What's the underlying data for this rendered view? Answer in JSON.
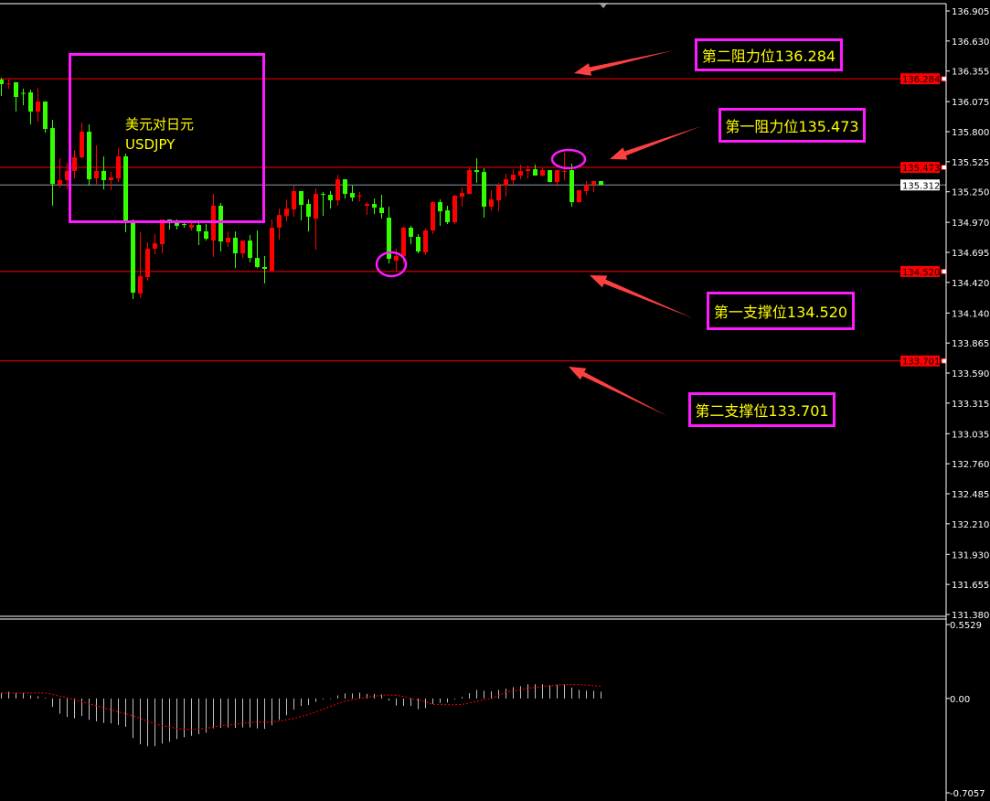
{
  "chart_data": [
    {
      "type": "candlestick",
      "title": "美元对日元",
      "subtitle": "USDJPY",
      "price_axis": {
        "range": [
          131.38,
          136.905
        ],
        "tick_labels": [
          "136.905",
          "136.630",
          "136.355",
          "136.075",
          "135.800",
          "135.525",
          "135.250",
          "134.970",
          "134.695",
          "134.420",
          "134.140",
          "133.865",
          "133.590",
          "133.315",
          "133.035",
          "132.760",
          "132.485",
          "132.210",
          "131.930",
          "131.655",
          "131.380"
        ]
      },
      "colors": {
        "up": "#ff0000",
        "down": "#33ff00",
        "level_line": "#ff0000",
        "current_price_line": "#8a9aa8"
      },
      "current_price": "135.312",
      "levels": [
        {
          "price": "136.284",
          "label": "第二阻力位136.284"
        },
        {
          "price": "135.473",
          "label": "第一阻力位135.473"
        },
        {
          "price": "134.520",
          "label": "第一支撑位134.520"
        },
        {
          "price": "133.701",
          "label": "第二支撑位133.701"
        }
      ],
      "ohlc": [
        [
          136.277,
          136.293,
          136.126,
          136.235
        ],
        [
          136.235,
          136.277,
          136.193,
          136.24
        ],
        [
          136.252,
          136.252,
          135.984,
          136.118
        ],
        [
          136.155,
          136.193,
          136.042,
          136.151
        ],
        [
          136.16,
          136.185,
          135.867,
          135.984
        ],
        [
          135.984,
          136.201,
          135.892,
          136.076
        ],
        [
          136.076,
          136.076,
          135.791,
          135.825
        ],
        [
          135.833,
          135.908,
          135.122,
          135.322
        ],
        [
          135.314,
          135.557,
          135.289,
          135.356
        ],
        [
          135.356,
          135.515,
          135.272,
          135.44
        ],
        [
          135.44,
          135.632,
          135.373,
          135.565
        ],
        [
          135.565,
          135.883,
          135.557,
          135.8
        ],
        [
          135.8,
          135.867,
          135.306,
          135.364
        ],
        [
          135.373,
          135.674,
          135.322,
          135.44
        ],
        [
          135.44,
          135.574,
          135.272,
          135.356
        ],
        [
          135.356,
          135.431,
          135.264,
          135.381
        ],
        [
          135.373,
          135.649,
          135.339,
          135.574
        ],
        [
          135.574,
          135.599,
          134.879,
          134.979
        ],
        [
          134.979,
          134.996,
          134.268,
          134.326
        ],
        [
          134.318,
          134.879,
          134.276,
          134.477
        ],
        [
          134.469,
          134.787,
          134.435,
          134.728
        ],
        [
          134.728,
          134.862,
          134.678,
          134.778
        ],
        [
          134.77,
          134.996,
          134.686,
          134.996
        ],
        [
          134.996,
          134.996,
          134.904,
          134.962
        ],
        [
          134.979,
          134.996,
          134.904,
          134.938
        ],
        [
          134.954,
          134.988,
          134.921,
          134.95
        ],
        [
          134.921,
          134.971,
          134.896,
          134.946
        ],
        [
          134.946,
          134.971,
          134.762,
          134.887
        ],
        [
          134.887,
          134.954,
          134.803,
          134.82
        ],
        [
          134.803,
          135.23,
          134.653,
          135.122
        ],
        [
          135.122,
          135.147,
          134.703,
          134.795
        ],
        [
          134.787,
          134.887,
          134.745,
          134.829
        ],
        [
          134.829,
          134.887,
          134.552,
          134.686
        ],
        [
          134.686,
          134.803,
          134.644,
          134.803
        ],
        [
          134.803,
          134.854,
          134.603,
          134.644
        ],
        [
          134.644,
          134.896,
          134.552,
          134.561
        ],
        [
          134.561,
          134.661,
          134.41,
          134.544
        ],
        [
          134.527,
          134.996,
          134.527,
          134.921
        ],
        [
          134.921,
          135.096,
          134.812,
          135.038
        ],
        [
          135.03,
          135.18,
          134.979,
          135.096
        ],
        [
          135.088,
          135.306,
          135.021,
          135.256
        ],
        [
          135.256,
          135.256,
          134.988,
          135.13
        ],
        [
          135.138,
          135.18,
          134.887,
          135.021
        ],
        [
          135.004,
          135.281,
          134.72,
          135.23
        ],
        [
          135.23,
          135.247,
          135.029,
          135.222
        ],
        [
          135.222,
          135.256,
          135.096,
          135.172
        ],
        [
          135.172,
          135.406,
          135.122,
          135.364
        ],
        [
          135.364,
          135.364,
          135.189,
          135.23
        ],
        [
          135.239,
          135.306,
          135.163,
          135.197
        ],
        [
          135.21,
          135.247,
          135.163,
          135.214
        ],
        [
          135.122,
          135.155,
          135.038,
          135.138
        ],
        [
          135.138,
          135.189,
          135.046,
          135.105
        ],
        [
          135.105,
          135.222,
          135.004,
          135.055
        ],
        [
          135.013,
          135.113,
          134.594,
          134.636
        ],
        [
          134.619,
          134.728,
          134.527,
          134.661
        ],
        [
          134.661,
          134.929,
          134.594,
          134.921
        ],
        [
          134.921,
          134.938,
          134.77,
          134.837
        ],
        [
          134.837,
          134.862,
          134.686,
          134.703
        ],
        [
          134.695,
          134.912,
          134.67,
          134.896
        ],
        [
          134.896,
          135.163,
          134.862,
          135.155
        ],
        [
          135.155,
          135.18,
          134.938,
          135.071
        ],
        [
          135.08,
          135.122,
          134.954,
          134.971
        ],
        [
          134.971,
          135.222,
          134.954,
          135.214
        ],
        [
          135.205,
          135.289,
          135.113,
          135.239
        ],
        [
          135.23,
          135.473,
          135.23,
          135.448
        ],
        [
          135.448,
          135.557,
          135.331,
          135.431
        ],
        [
          135.431,
          135.465,
          135.013,
          135.113
        ],
        [
          135.113,
          135.264,
          135.08,
          135.18
        ],
        [
          135.172,
          135.331,
          135.071,
          135.306
        ],
        [
          135.306,
          135.415,
          135.205,
          135.364
        ],
        [
          135.356,
          135.456,
          135.314,
          135.406
        ],
        [
          135.398,
          135.498,
          135.364,
          135.44
        ],
        [
          135.44,
          135.49,
          135.373,
          135.456
        ],
        [
          135.456,
          135.498,
          135.398,
          135.398
        ],
        [
          135.398,
          135.465,
          135.39,
          135.448
        ],
        [
          135.448,
          135.448,
          135.339,
          135.339
        ],
        [
          135.339,
          135.448,
          135.297,
          135.448
        ],
        [
          135.436,
          135.607,
          135.356,
          135.44
        ],
        [
          135.448,
          135.507,
          135.113,
          135.155
        ],
        [
          135.155,
          135.264,
          135.147,
          135.264
        ],
        [
          135.256,
          135.348,
          135.222,
          135.314
        ],
        [
          135.314,
          135.348,
          135.247,
          135.348
        ],
        [
          135.348,
          135.348,
          135.312,
          135.312
        ]
      ]
    },
    {
      "type": "bar",
      "indicator": "MACD",
      "y_axis": {
        "range": [
          -0.7057,
          0.5529
        ],
        "tick_labels": [
          "0.5529",
          "0.00",
          "-0.7057"
        ]
      },
      "colors": {
        "histogram": "#c0c0c0",
        "signal": "#ff0000"
      },
      "histogram": [
        0.041,
        0.05,
        0.041,
        0.041,
        0.023,
        0.016,
        0.005,
        -0.064,
        -0.114,
        -0.139,
        -0.148,
        -0.132,
        -0.16,
        -0.171,
        -0.183,
        -0.187,
        -0.199,
        -0.212,
        -0.297,
        -0.342,
        -0.358,
        -0.358,
        -0.338,
        -0.324,
        -0.304,
        -0.29,
        -0.279,
        -0.267,
        -0.256,
        -0.224,
        -0.221,
        -0.217,
        -0.221,
        -0.217,
        -0.217,
        -0.224,
        -0.228,
        -0.201,
        -0.16,
        -0.126,
        -0.084,
        -0.057,
        -0.05,
        -0.025,
        -0.007,
        -0.005,
        0.023,
        0.037,
        0.037,
        0.043,
        0.034,
        0.034,
        0.03,
        -0.016,
        -0.053,
        -0.057,
        -0.057,
        -0.08,
        -0.073,
        -0.041,
        -0.034,
        -0.03,
        -0.007,
        0.011,
        0.039,
        0.064,
        0.057,
        0.053,
        0.064,
        0.073,
        0.084,
        0.091,
        0.107,
        0.107,
        0.107,
        0.098,
        0.103,
        0.103,
        0.08,
        0.064,
        0.057,
        0.057,
        0.05
      ],
      "signal": [
        0.041,
        0.041,
        0.041,
        0.041,
        0.041,
        0.041,
        0.041,
        0.03,
        0.018,
        0.005,
        -0.01,
        -0.025,
        -0.04,
        -0.055,
        -0.07,
        -0.085,
        -0.1,
        -0.115,
        -0.13,
        -0.15,
        -0.17,
        -0.19,
        -0.205,
        -0.215,
        -0.225,
        -0.23,
        -0.233,
        -0.23,
        -0.225,
        -0.212,
        -0.205,
        -0.198,
        -0.193,
        -0.185,
        -0.18,
        -0.177,
        -0.177,
        -0.175,
        -0.17,
        -0.16,
        -0.15,
        -0.135,
        -0.12,
        -0.1,
        -0.08,
        -0.06,
        -0.04,
        -0.02,
        -0.01,
        0.0,
        0.01,
        0.016,
        0.025,
        0.025,
        0.023,
        0.015,
        0.0,
        -0.01,
        -0.025,
        -0.045,
        -0.045,
        -0.047,
        -0.047,
        -0.045,
        -0.035,
        -0.02,
        -0.01,
        0.0,
        0.02,
        0.05,
        0.055,
        0.065,
        0.075,
        0.083,
        0.09,
        0.095,
        0.1,
        0.105,
        0.105,
        0.105,
        0.1,
        0.095,
        0.09
      ]
    }
  ],
  "annotations": {
    "title_cn": "美元对日元",
    "title_en": "USDJPY",
    "resistance_2": "第二阻力位136.284",
    "resistance_1": "第一阻力位135.473",
    "support_1": "第一支撑位134.520",
    "support_2": "第二支撑位133.701",
    "box_color": "#ff1aff",
    "text_color": "#ffff00",
    "arrow_color": "#ff4040"
  }
}
